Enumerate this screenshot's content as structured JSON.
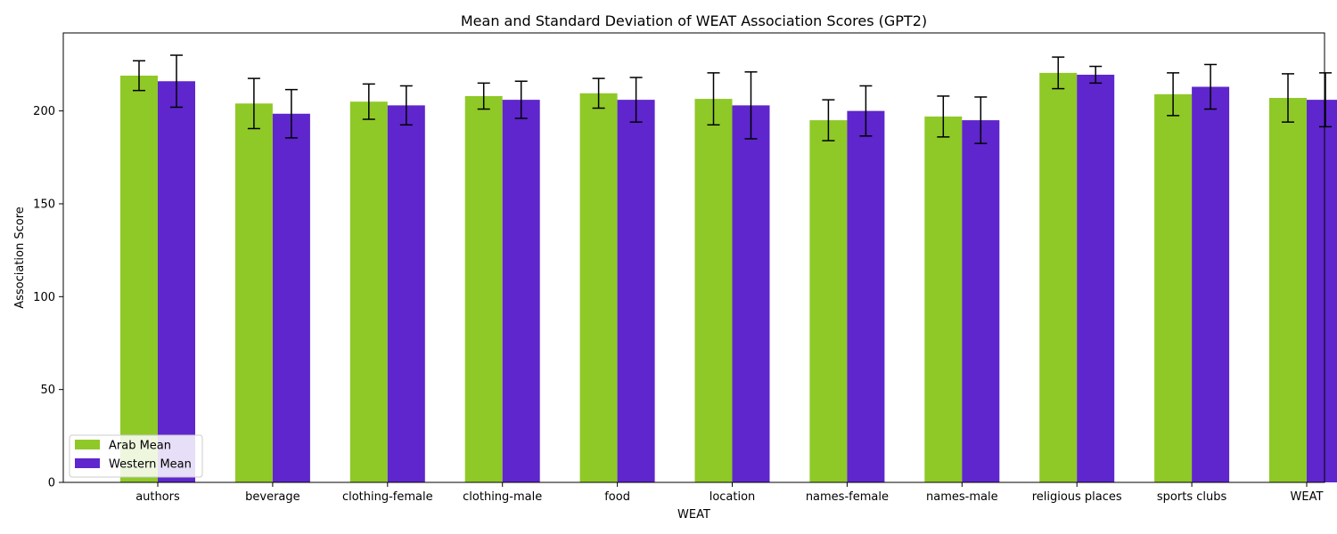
{
  "chart_data": {
    "type": "bar",
    "title": "Mean and Standard Deviation of WEAT Association Scores (GPT2)",
    "xlabel": "WEAT",
    "ylabel": "Association Score",
    "ylim": [
      0,
      242
    ],
    "yticks": [
      0,
      50,
      100,
      150,
      200
    ],
    "grid": false,
    "legend_position": "lower-left",
    "categories": [
      "authors",
      "beverage",
      "clothing-female",
      "clothing-male",
      "food",
      "location",
      "names-female",
      "names-male",
      "religious places",
      "sports clubs",
      "WEAT"
    ],
    "series": [
      {
        "name": "Arab Mean",
        "color": "#8fc927",
        "values": [
          219,
          204,
          205,
          208,
          209.5,
          206.5,
          195,
          197,
          220.5,
          209,
          207
        ],
        "errors": [
          8,
          13.5,
          9.5,
          7,
          8,
          14,
          11,
          11,
          8.5,
          11.5,
          13
        ]
      },
      {
        "name": "Western Mean",
        "color": "#5e26cc",
        "values": [
          216,
          198.5,
          203,
          206,
          206,
          203,
          200,
          195,
          219.5,
          213,
          206
        ],
        "errors": [
          14,
          13,
          10.5,
          10,
          12,
          18,
          13.5,
          12.5,
          4.5,
          12,
          14.5
        ]
      }
    ]
  }
}
